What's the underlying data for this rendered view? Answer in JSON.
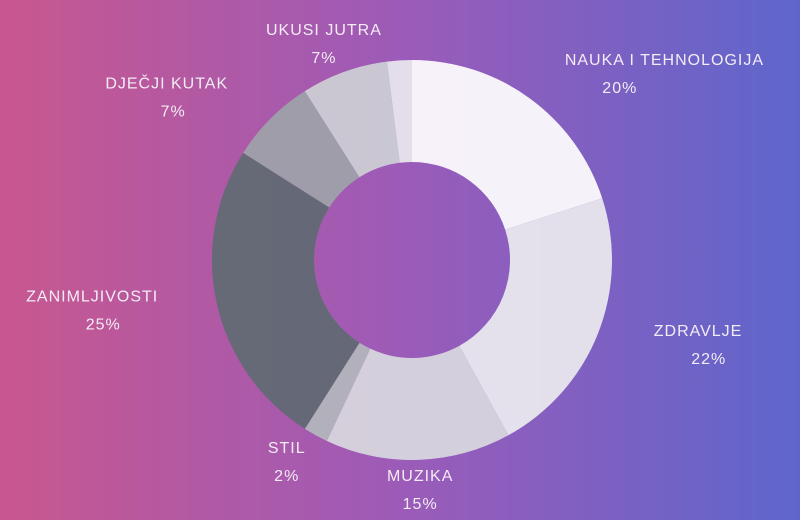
{
  "chart_data": {
    "type": "donut",
    "categories": [
      "NAUKA I TEHNOLOGIJA",
      "ZDRAVLJE",
      "MUZIKA",
      "STIL",
      "ZANIMLJIVOSTI",
      "DJEČJI KUTAK",
      "UKUSI JUTRA",
      null
    ],
    "values": [
      20,
      22,
      15,
      2,
      25,
      7,
      7,
      2
    ],
    "value_labels": [
      "20%",
      "22%",
      "15%",
      "2%",
      "25%",
      "7%",
      "7%",
      null
    ],
    "colors": [
      "#ffffff",
      "#ebebf0",
      "#d9d9df",
      "#b3b7bc",
      "#5f6a72",
      "#9da3a8",
      "#cdd0d6",
      "#e9e9ee"
    ]
  }
}
